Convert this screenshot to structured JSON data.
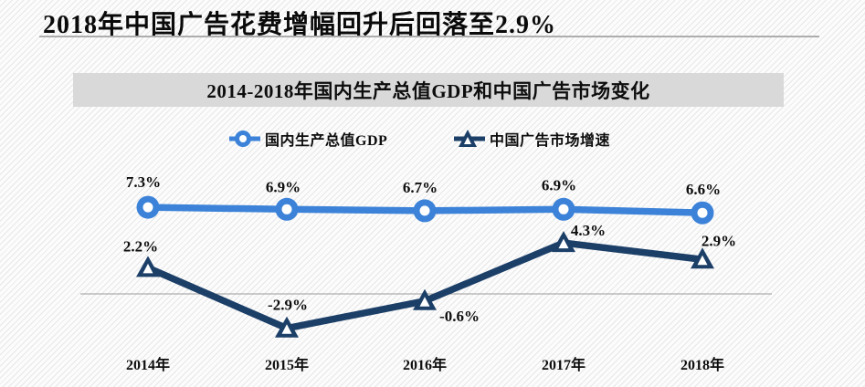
{
  "page_title": "2018年中国广告花费增幅回升后回落至2.9%",
  "chart": {
    "title": "2014-2018年国内生产总值GDP和中国广告市场变化"
  },
  "colors": {
    "gdp_series": "#3b82d8",
    "ad_series": "#1c3f68",
    "title_bar_bg": "#d9d9d9",
    "zero_line": "#9a9a9a"
  },
  "chart_data": {
    "type": "line",
    "categories": [
      "2014年",
      "2015年",
      "2016年",
      "2017年",
      "2018年"
    ],
    "series": [
      {
        "name": "国内生产总值GDP",
        "marker": "circle",
        "color": "#3b82d8",
        "values": [
          7.3,
          6.9,
          6.7,
          6.9,
          6.6
        ],
        "labels": [
          "7.3%",
          "6.9%",
          "6.7%",
          "6.9%",
          "6.6%"
        ]
      },
      {
        "name": "中国广告市场增速",
        "marker": "triangle",
        "color": "#1c3f68",
        "values": [
          2.2,
          -2.9,
          -0.6,
          4.3,
          2.9
        ],
        "labels": [
          "2.2%",
          "-2.9%",
          "-0.6%",
          "4.3%",
          "2.9%"
        ]
      }
    ],
    "xlabel": "",
    "ylabel": "",
    "baseline": 0,
    "grid": "zero-line-only",
    "legend_position": "top"
  }
}
